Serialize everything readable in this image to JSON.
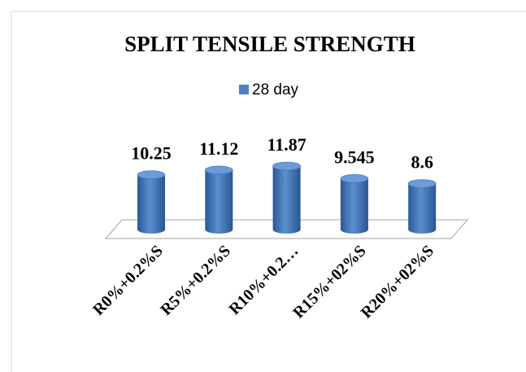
{
  "chart_data": {
    "type": "bar3d",
    "title": "SPLIT TENSILE STRENGTH",
    "categories": [
      "R0%+0.2%S",
      "R5%+0.2%S",
      "R10%+0.2…",
      "R15%+02%S",
      "R20%+02%S"
    ],
    "series": [
      {
        "name": "28 day",
        "color": "#4f81bd",
        "values": [
          10.25,
          11.12,
          11.87,
          9.545,
          8.6
        ]
      }
    ],
    "legend": "top"
  }
}
